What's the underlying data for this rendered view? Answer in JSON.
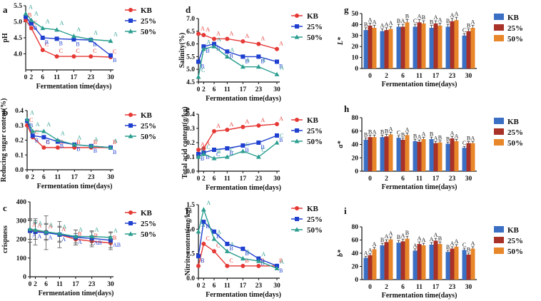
{
  "colors": {
    "KB": "#e53935",
    "p25": "#1e3fcf",
    "p50": "#2a9d8f",
    "barKB": "#3a6fc4",
    "bar25": "#a83228",
    "bar50": "#e8862a",
    "axis": "#111111"
  },
  "line_x_ticks": [
    0,
    2,
    6,
    11,
    17,
    23,
    30
  ],
  "chart_data": [
    {
      "id": "a",
      "type": "line",
      "xlabel": "Fermentation time(days)",
      "ylabel": "pH",
      "ylim": [
        3.5,
        5.5
      ],
      "yticks": [
        4.0,
        4.5,
        5.0,
        5.5
      ],
      "series": [
        {
          "name": "KB",
          "values": [
            5.05,
            4.8,
            4.12,
            3.92,
            3.92,
            3.92,
            3.9
          ],
          "letters": [
            "B",
            "C",
            "C",
            "C",
            "C",
            "C",
            "C"
          ]
        },
        {
          "name": "25%",
          "values": [
            5.15,
            4.95,
            4.5,
            4.47,
            4.45,
            4.43,
            3.95
          ],
          "letters": [
            "B",
            "B",
            "B",
            "B",
            "B",
            "B",
            "B"
          ]
        },
        {
          "name": "50%",
          "values": [
            5.25,
            5.05,
            4.8,
            4.75,
            4.55,
            4.45,
            4.4
          ],
          "letters": [
            "A",
            "A",
            "A",
            "A",
            "A",
            "A",
            "A"
          ]
        }
      ]
    },
    {
      "id": "b",
      "type": "line",
      "xlabel": "Fermentation time(days)",
      "ylabel": "Reducing sugar content(%)",
      "ylim": [
        0.0,
        0.4
      ],
      "yticks": [
        0.0,
        0.1,
        0.2,
        0.3,
        0.4
      ],
      "series": [
        {
          "name": "KB",
          "values": [
            0.3,
            0.22,
            0.15,
            0.15,
            0.15,
            0.15,
            0.15
          ],
          "letters": [
            "C",
            "C",
            "C",
            "B",
            "B",
            "B",
            "B"
          ]
        },
        {
          "name": "25%",
          "values": [
            0.33,
            0.23,
            0.22,
            0.19,
            0.17,
            0.16,
            0.15
          ],
          "letters": [
            "B",
            "B",
            "B",
            "B",
            "B",
            "B",
            "B"
          ]
        },
        {
          "name": "50%",
          "values": [
            0.34,
            0.26,
            0.26,
            0.2,
            0.17,
            0.16,
            0.15
          ],
          "letters": [
            "A",
            "A",
            "A",
            "A",
            "A",
            "A",
            "A"
          ]
        }
      ]
    },
    {
      "id": "c",
      "type": "line",
      "xlabel": "Fermentation time(days)",
      "ylabel": "crispness",
      "ylim": [
        0,
        400
      ],
      "yticks": [
        0,
        100,
        200,
        300,
        400
      ],
      "series": [
        {
          "name": "KB",
          "values": [
            250,
            245,
            240,
            225,
            200,
            190,
            180
          ],
          "letters": [
            "A",
            "A",
            "A",
            "A",
            "B",
            "B",
            "B"
          ],
          "err": [
            50,
            45,
            40,
            40,
            30,
            30,
            35
          ]
        },
        {
          "name": "25%",
          "values": [
            245,
            240,
            235,
            225,
            210,
            205,
            195
          ],
          "letters": [
            "A",
            "A",
            "A",
            "A",
            "A",
            "AB",
            "AB"
          ],
          "err": [
            60,
            70,
            90,
            70,
            40,
            35,
            40
          ]
        },
        {
          "name": "50%",
          "values": [
            255,
            250,
            240,
            230,
            215,
            215,
            210
          ],
          "letters": [
            "A",
            "A",
            "A",
            "A",
            "A",
            "A",
            "A"
          ],
          "err": [
            55,
            50,
            45,
            40,
            35,
            30,
            30
          ]
        }
      ]
    },
    {
      "id": "d",
      "type": "line",
      "xlabel": "Fermentation time(days)",
      "ylabel": "Salinity(%)",
      "ylim": [
        4.5,
        7.0
      ],
      "yticks": [
        4.5,
        5.0,
        5.5,
        6.0,
        6.5,
        7.0
      ],
      "series": [
        {
          "name": "KB",
          "values": [
            6.4,
            6.35,
            6.2,
            6.2,
            6.1,
            6.0,
            5.8
          ],
          "letters": [
            "A",
            "A",
            "A",
            "A",
            "A",
            "A",
            "A"
          ]
        },
        {
          "name": "25%",
          "values": [
            5.3,
            5.9,
            6.0,
            5.7,
            5.5,
            5.5,
            5.3
          ],
          "letters": [
            "B",
            "B",
            "B",
            "B",
            "B",
            "B",
            "B"
          ]
        },
        {
          "name": "50%",
          "values": [
            4.7,
            5.8,
            5.9,
            5.5,
            5.1,
            5.1,
            4.8
          ],
          "letters": [
            "C",
            "A",
            "A",
            "A",
            "A",
            "A",
            "A"
          ]
        }
      ]
    },
    {
      "id": "e",
      "type": "line",
      "xlabel": "Fermentation time(days)",
      "ylabel": "Total acid content(g/kg)",
      "ylim": [
        0.0,
        0.4
      ],
      "yticks": [
        0.0,
        0.1,
        0.2,
        0.3,
        0.4
      ],
      "series": [
        {
          "name": "KB",
          "values": [
            0.15,
            0.16,
            0.28,
            0.29,
            0.31,
            0.32,
            0.33
          ],
          "letters": [
            "A",
            "A",
            "A",
            "A",
            "A",
            "A",
            "A"
          ]
        },
        {
          "name": "25%",
          "values": [
            0.12,
            0.13,
            0.15,
            0.16,
            0.18,
            0.2,
            0.25
          ],
          "letters": [
            "B",
            "B",
            "C",
            "B",
            "B",
            "B",
            "B"
          ]
        },
        {
          "name": "50%",
          "values": [
            0.1,
            0.12,
            0.09,
            0.1,
            0.14,
            0.1,
            0.2
          ],
          "letters": [
            "C",
            "C",
            "B",
            "C",
            "C",
            "C",
            "C"
          ]
        }
      ]
    },
    {
      "id": "f",
      "type": "line",
      "xlabel": "Fermentation time(days)",
      "ylabel": "Nitrite content(mg/kg)",
      "ylim": [
        0.0,
        1.5
      ],
      "yticks": [
        0.0,
        0.5,
        1.0,
        1.5
      ],
      "series": [
        {
          "name": "KB",
          "values": [
            0.25,
            0.7,
            0.55,
            0.25,
            0.25,
            0.25,
            0.25
          ],
          "letters": [
            "C",
            "C",
            "C",
            "C",
            "B",
            "B",
            "B"
          ]
        },
        {
          "name": "25%",
          "values": [
            0.45,
            1.15,
            0.95,
            0.7,
            0.6,
            0.4,
            0.25
          ],
          "letters": [
            "B",
            "B",
            "B",
            "B",
            "B",
            "B",
            "B"
          ]
        },
        {
          "name": "50%",
          "values": [
            0.95,
            1.4,
            0.8,
            0.55,
            0.4,
            0.35,
            0.2
          ],
          "letters": [
            "A",
            "A",
            "A",
            "A",
            "A",
            "A",
            "A"
          ]
        }
      ]
    },
    {
      "id": "g",
      "type": "bar",
      "xlabel": "Fermentation time(days)",
      "ylabel": "L*",
      "ylim": [
        0,
        50
      ],
      "yticks": [
        0,
        10,
        20,
        30,
        40,
        50
      ],
      "categories": [
        "0",
        "2",
        "6",
        "11",
        "17",
        "23",
        "30"
      ],
      "series": [
        {
          "name": "KB",
          "values": [
            35,
            34,
            38,
            38,
            37,
            38,
            30
          ],
          "letters": [
            "B",
            "A",
            "B",
            "C",
            "B",
            "B",
            "C"
          ]
        },
        {
          "name": "25%",
          "values": [
            39,
            35,
            38,
            42,
            41,
            43,
            34
          ],
          "letters": [
            "A",
            "A",
            "A",
            "A",
            "A",
            "A",
            "B"
          ]
        },
        {
          "name": "50%",
          "values": [
            37,
            36,
            42,
            41,
            39,
            44,
            37
          ],
          "letters": [
            "A",
            "A",
            "B",
            "B",
            "A",
            "A",
            "A"
          ]
        }
      ]
    },
    {
      "id": "h",
      "type": "bar",
      "xlabel": "Fermentation time(days)",
      "ylabel": "a*",
      "ylim": [
        0,
        80
      ],
      "yticks": [
        0,
        20,
        40,
        60,
        80
      ],
      "categories": [
        "0",
        "2",
        "6",
        "11",
        "17",
        "23",
        "30"
      ],
      "series": [
        {
          "name": "KB",
          "values": [
            47,
            51,
            50,
            45,
            48,
            41,
            35
          ],
          "letters": [
            "B",
            "B",
            "C",
            "B",
            "B",
            "B",
            "C"
          ]
        },
        {
          "name": "25%",
          "values": [
            51,
            52,
            47,
            44,
            42,
            49,
            42
          ],
          "letters": [
            "B",
            "B",
            "B",
            "A",
            "A",
            "A",
            "B"
          ]
        },
        {
          "name": "50%",
          "values": [
            51,
            55,
            54,
            48,
            43,
            45,
            42
          ],
          "letters": [
            "A",
            "A",
            "A",
            "A",
            "B",
            "A",
            "A"
          ]
        }
      ]
    },
    {
      "id": "i",
      "type": "bar",
      "xlabel": "Fermentation time(days)",
      "ylabel": "b*",
      "ylim": [
        0,
        80
      ],
      "yticks": [
        0,
        20,
        40,
        60,
        80
      ],
      "categories": [
        "0",
        "2",
        "6",
        "11",
        "17",
        "23",
        "30"
      ],
      "series": [
        {
          "name": "KB",
          "values": [
            33,
            52,
            56,
            44,
            53,
            42,
            45
          ],
          "letters": [
            "A",
            "B",
            "B",
            "A",
            "A",
            "B",
            "C"
          ]
        },
        {
          "name": "25%",
          "values": [
            37,
            57,
            58,
            54,
            59,
            47,
            38
          ],
          "letters": [
            "A",
            "A",
            "A",
            "A",
            "A",
            "A",
            "B"
          ]
        },
        {
          "name": "50%",
          "values": [
            46,
            61,
            62,
            52,
            54,
            50,
            47
          ],
          "letters": [
            "A",
            "A",
            "B",
            "A",
            "B",
            "A",
            "A"
          ]
        }
      ]
    }
  ]
}
